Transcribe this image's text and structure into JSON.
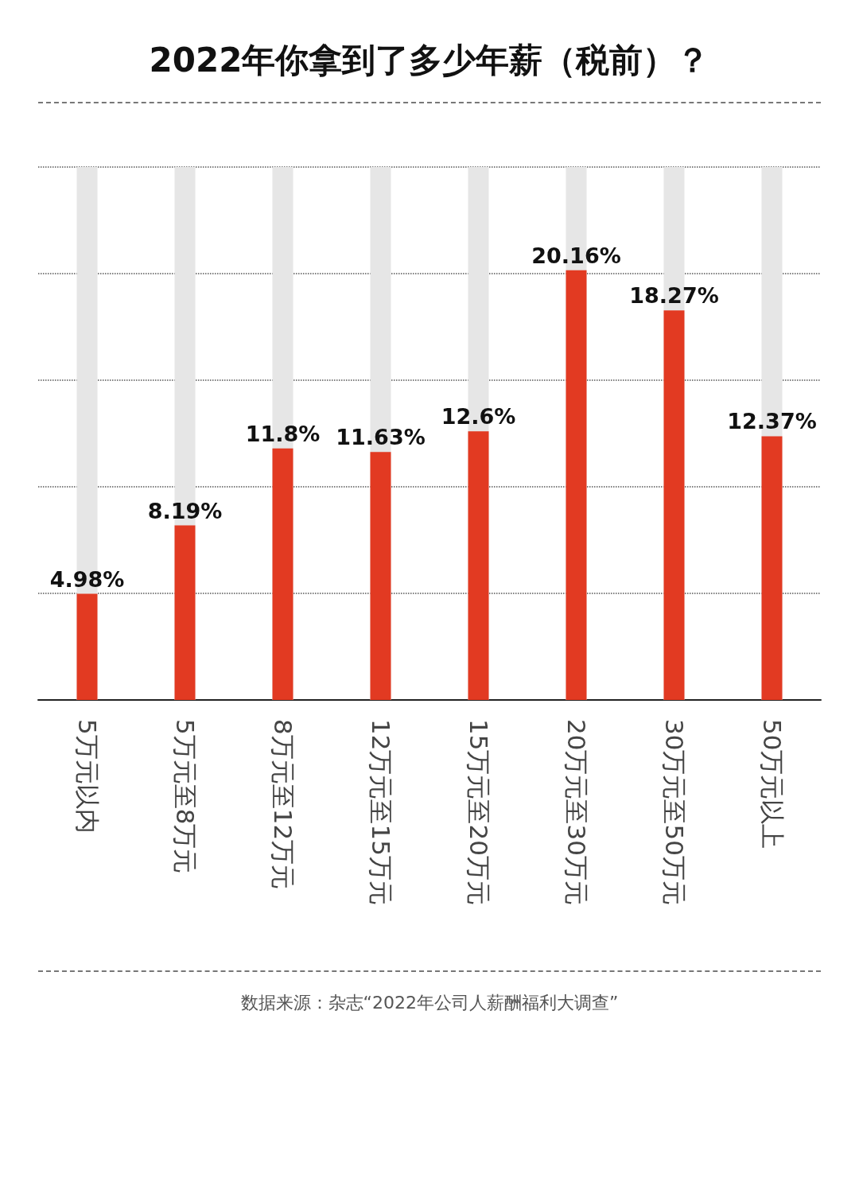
{
  "chart_data": {
    "type": "bar",
    "title": "2022年你拿到了多少年薪（税前）？",
    "categories": [
      "5万元以内",
      "5万元至8万元",
      "8万元至12万元",
      "12万元至15万元",
      "15万元至20万元",
      "20万元至30万元",
      "30万元至50万元",
      "50万元以上"
    ],
    "values": [
      4.98,
      8.19,
      11.8,
      11.63,
      12.6,
      20.16,
      18.27,
      12.37
    ],
    "color": "#e23a22",
    "data_labels": true,
    "value_labels": [
      "4.98%",
      "8.19%",
      "11.8%",
      "11.63%",
      "12.6%",
      "20.16%",
      "18.27%",
      "12.37%"
    ],
    "ylim": [
      0,
      25
    ],
    "yticks": [
      {
        "value": 0,
        "label": null
      },
      {
        "value": 5,
        "label": null
      },
      {
        "value": 10,
        "label": null
      },
      {
        "value": 15,
        "label": null
      },
      {
        "value": 20,
        "label": null
      },
      {
        "value": 25,
        "label": null
      }
    ],
    "grid": "y",
    "tick_labels": "x",
    "annotations": [
      "数据来源：杂志“2022年公司人薪酬福利大调查”"
    ]
  }
}
